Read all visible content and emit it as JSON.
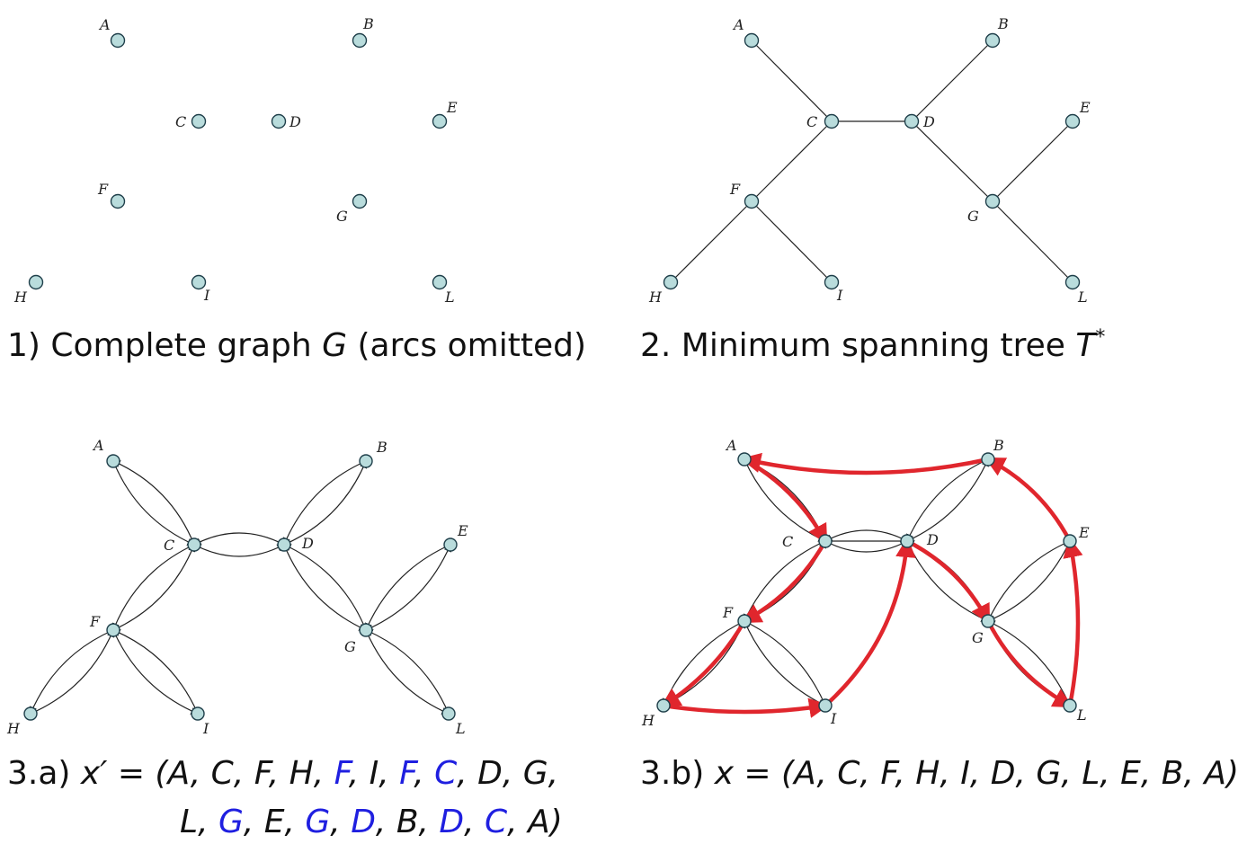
{
  "panels": {
    "p1": {
      "caption_prefix": "1) Complete graph ",
      "caption_var": "G",
      "caption_suffix": " (arcs omitted)"
    },
    "p2": {
      "caption_prefix": "2. Minimum spanning tree ",
      "caption_var": "T",
      "caption_sup": "*"
    },
    "p3a": {
      "caption_prefix": "3.a) ",
      "caption_var": "x′ = (",
      "sequence_line1": [
        "A",
        "C",
        "F",
        "H",
        "F",
        "I",
        "F",
        "C",
        "D",
        "G"
      ],
      "sequence_line2": [
        "L",
        "G",
        "E",
        "G",
        "D",
        "B",
        "D",
        "C",
        "A"
      ],
      "highlighted_line1": [
        false,
        false,
        false,
        false,
        true,
        false,
        true,
        true,
        false,
        false
      ],
      "highlighted_line2": [
        false,
        true,
        false,
        true,
        true,
        false,
        true,
        true,
        false
      ],
      "highlight_color": "#1f1fe0"
    },
    "p3b": {
      "caption_prefix": "3.b) ",
      "caption_var": "x = (",
      "sequence": [
        "A",
        "C",
        "F",
        "H",
        "I",
        "D",
        "G",
        "L",
        "E",
        "B",
        "A"
      ]
    }
  },
  "node_labels": [
    "A",
    "B",
    "C",
    "D",
    "E",
    "F",
    "G",
    "H",
    "I",
    "L"
  ],
  "tree_edges": [
    [
      "A",
      "C"
    ],
    [
      "B",
      "D"
    ],
    [
      "C",
      "D"
    ],
    [
      "C",
      "F"
    ],
    [
      "D",
      "G"
    ],
    [
      "E",
      "G"
    ],
    [
      "F",
      "H"
    ],
    [
      "F",
      "I"
    ],
    [
      "G",
      "L"
    ]
  ],
  "tour_edges": [
    [
      "A",
      "C"
    ],
    [
      "C",
      "F"
    ],
    [
      "F",
      "H"
    ],
    [
      "H",
      "I"
    ],
    [
      "I",
      "D"
    ],
    [
      "D",
      "G"
    ],
    [
      "G",
      "L"
    ],
    [
      "L",
      "E"
    ],
    [
      "E",
      "B"
    ],
    [
      "B",
      "A"
    ]
  ],
  "colors": {
    "node_fill": "#b9dcdc",
    "tour": "#e0262d",
    "highlight": "#1f1fe0"
  }
}
